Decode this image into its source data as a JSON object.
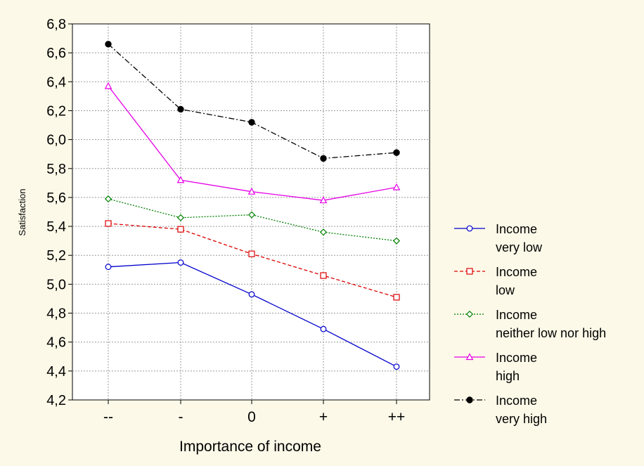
{
  "chart_data": {
    "type": "line",
    "xlabel": "Importance of income",
    "ylabel": "Satisfaction",
    "categories": [
      "--",
      "-",
      "0",
      "+",
      "++"
    ],
    "ylim": [
      4.2,
      6.8
    ],
    "yticks": [
      "4,2",
      "4,4",
      "4,6",
      "4,8",
      "5,0",
      "5,2",
      "5,4",
      "5,6",
      "5,8",
      "6,0",
      "6,2",
      "6,4",
      "6,6",
      "6,8"
    ],
    "grid": true,
    "legend_position": "right",
    "series": [
      {
        "label_line1": "Income",
        "label_line2": "very low",
        "color": "#0000cc",
        "marker": "circle-open",
        "dash": "solid",
        "values": [
          5.12,
          5.15,
          4.93,
          4.69,
          4.43
        ]
      },
      {
        "label_line1": "Income",
        "label_line2": "low",
        "color": "#dd0000",
        "marker": "square-open",
        "dash": "dashed",
        "values": [
          5.42,
          5.38,
          5.21,
          5.06,
          4.91
        ]
      },
      {
        "label_line1": "Income",
        "label_line2": "neither low nor high",
        "color": "#008000",
        "marker": "diamond-open",
        "dash": "dotted",
        "values": [
          5.59,
          5.46,
          5.48,
          5.36,
          5.3
        ]
      },
      {
        "label_line1": "Income",
        "label_line2": "high",
        "color": "#e600e6",
        "marker": "triangle-open",
        "dash": "solid",
        "values": [
          6.37,
          5.72,
          5.64,
          5.58,
          5.67
        ]
      },
      {
        "label_line1": "Income",
        "label_line2": "very high",
        "color": "#000000",
        "marker": "circle-filled",
        "dash": "dashdot",
        "values": [
          6.66,
          6.21,
          6.12,
          5.87,
          5.91
        ]
      }
    ]
  }
}
